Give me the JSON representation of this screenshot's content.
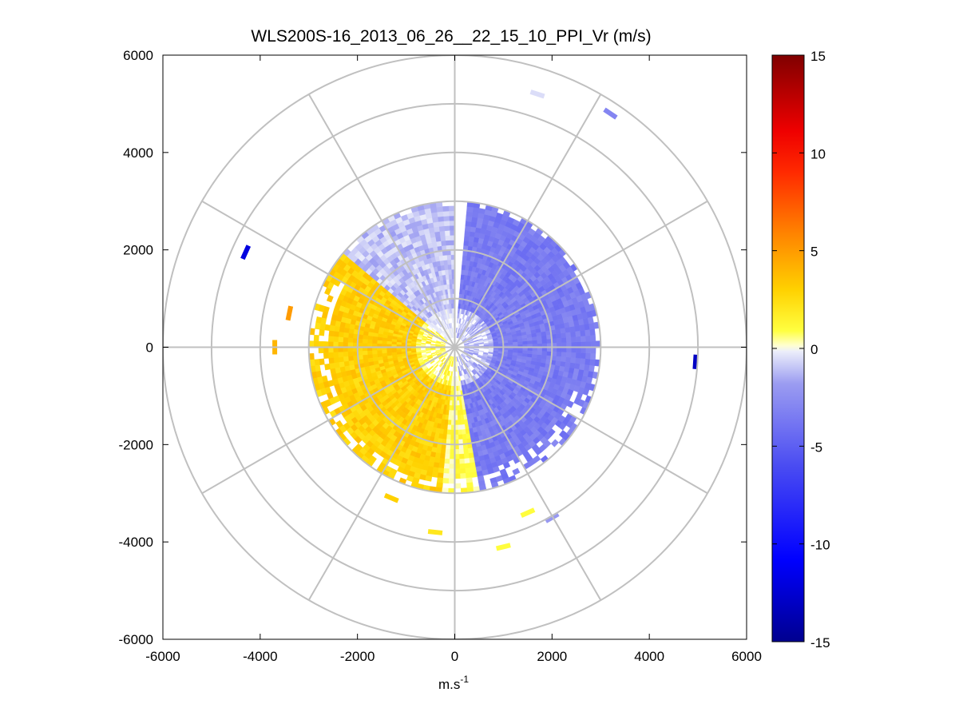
{
  "chart_data": {
    "type": "heatmap",
    "subtype": "polar-ppi-scan",
    "title": "WLS200S-16_2013_06_26__22_15_10_PPI_Vr (m/s)",
    "xlabel": "m.s",
    "xlabel_superscript": "-1",
    "ylabel": "",
    "xlim": [
      -6000,
      6000
    ],
    "ylim": [
      -6000,
      6000
    ],
    "xticks": [
      -6000,
      -4000,
      -2000,
      0,
      2000,
      4000,
      6000
    ],
    "yticks": [
      6000,
      4000,
      2000,
      0,
      -2000,
      -4000,
      -6000
    ],
    "xtick_labels": [
      "-6000",
      "-4000",
      "-2000",
      "0",
      "2000",
      "4000",
      "6000"
    ],
    "ytick_labels": [
      "6000",
      "4000",
      "2000",
      "0",
      "-2000",
      "-4000",
      "-6000"
    ],
    "polar_grid": {
      "range_rings_m": [
        1000,
        2000,
        3000,
        4000,
        5000,
        6000
      ],
      "spoke_angles_deg": [
        0,
        30,
        60,
        90,
        120,
        150,
        180,
        210,
        240,
        270,
        300,
        330
      ],
      "grid_color": "#c0c0c0"
    },
    "colorbar": {
      "min": -15,
      "max": 15,
      "ticks": [
        15,
        10,
        5,
        0,
        -5,
        -10,
        -15
      ],
      "tick_labels": [
        "15",
        "10",
        "5",
        "0",
        "-5",
        "-10",
        "-15"
      ]
    },
    "field_description": {
      "variable": "radial velocity Vr",
      "units": "m/s",
      "main_coverage_range_m": [
        0,
        3000
      ],
      "western_sector_vr": 3,
      "eastern_sector_vr": -3.5,
      "inner_north_sector_vr": -1,
      "far_east_vr": -5
    },
    "isolated_returns": [
      {
        "x": -4300,
        "y": 1950,
        "vr": -12
      },
      {
        "x": -3400,
        "y": 700,
        "vr": 5
      },
      {
        "x": -3700,
        "y": 0,
        "vr": 4
      },
      {
        "x": 4950,
        "y": -300,
        "vr": -13
      },
      {
        "x": 1700,
        "y": 5200,
        "vr": -0.5
      },
      {
        "x": 3200,
        "y": 4800,
        "vr": -3
      },
      {
        "x": -1300,
        "y": -3100,
        "vr": 3
      },
      {
        "x": -400,
        "y": -3800,
        "vr": 2
      },
      {
        "x": 1000,
        "y": -4100,
        "vr": 1
      },
      {
        "x": 1500,
        "y": -3400,
        "vr": 1
      },
      {
        "x": 2000,
        "y": -3500,
        "vr": -2
      }
    ]
  }
}
